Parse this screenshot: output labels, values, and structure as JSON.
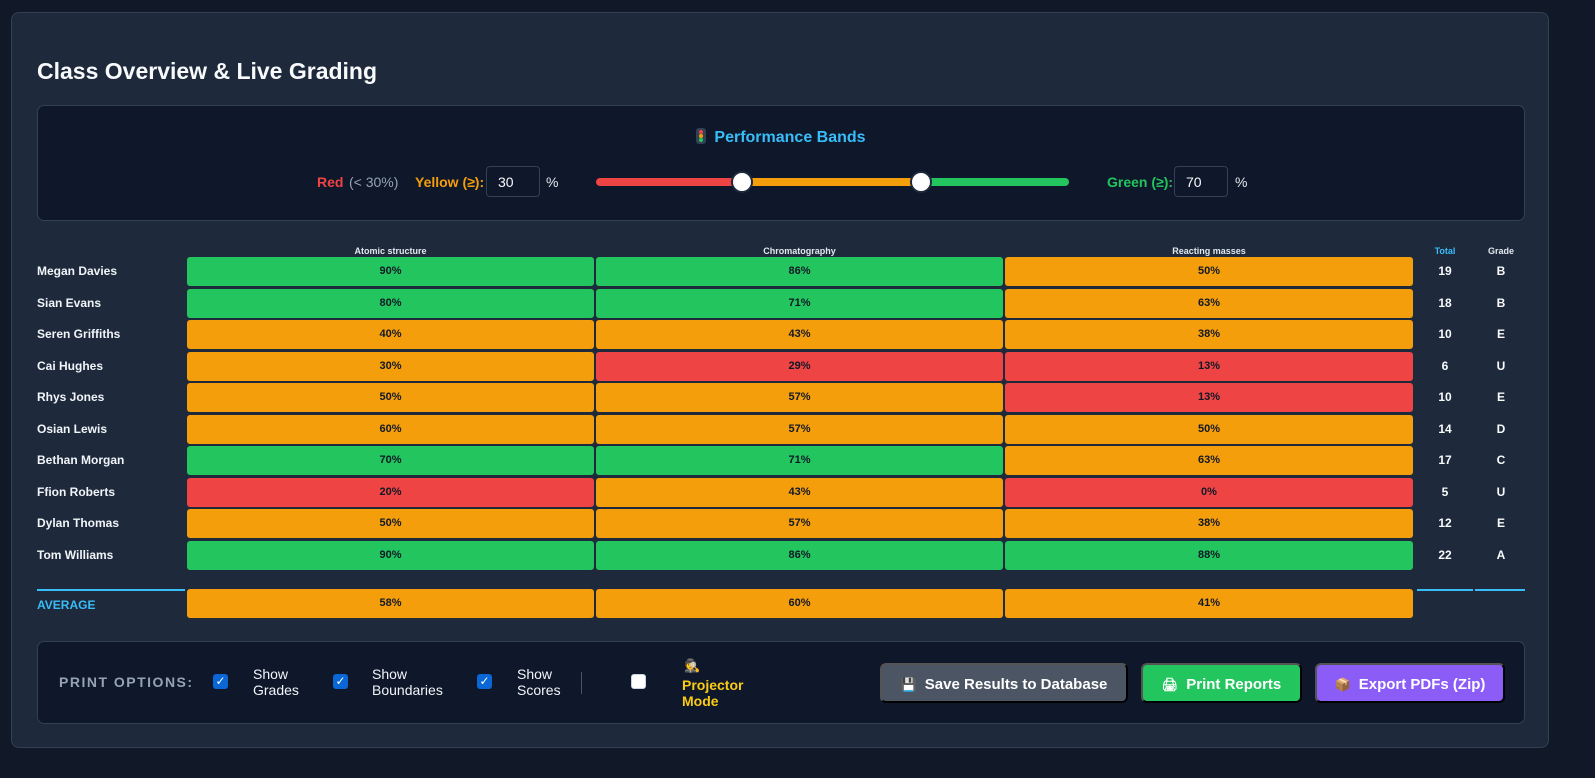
{
  "page": {
    "title": "Class Overview & Live Grading"
  },
  "bands": {
    "title": "Performance Bands",
    "red_label": "Red",
    "red_sub": "(< 30%)",
    "yellow_label": "Yellow (≥):",
    "yellow_value": "30",
    "green_label": "Green (≥):",
    "green_value": "70",
    "percent_sign": "%",
    "colors": {
      "red": "#ef4444",
      "yellow": "#f59e0b",
      "green": "#22c55e"
    },
    "slider": {
      "min": 0,
      "max": 100,
      "low": 30,
      "high": 70
    }
  },
  "table": {
    "headers": [
      "Atomic structure",
      "Chromatography",
      "Reacting masses"
    ],
    "total_header": "Total",
    "grade_header": "Grade",
    "rows": [
      {
        "name": "Megan Davies",
        "scores": [
          "90%",
          "86%",
          "50%"
        ],
        "bands": [
          "green",
          "green",
          "yellow"
        ],
        "total": "19",
        "grade": "B"
      },
      {
        "name": "Sian Evans",
        "scores": [
          "80%",
          "71%",
          "63%"
        ],
        "bands": [
          "green",
          "green",
          "yellow"
        ],
        "total": "18",
        "grade": "B"
      },
      {
        "name": "Seren Griffiths",
        "scores": [
          "40%",
          "43%",
          "38%"
        ],
        "bands": [
          "yellow",
          "yellow",
          "yellow"
        ],
        "total": "10",
        "grade": "E"
      },
      {
        "name": "Cai Hughes",
        "scores": [
          "30%",
          "29%",
          "13%"
        ],
        "bands": [
          "yellow",
          "red",
          "red"
        ],
        "total": "6",
        "grade": "U"
      },
      {
        "name": "Rhys Jones",
        "scores": [
          "50%",
          "57%",
          "13%"
        ],
        "bands": [
          "yellow",
          "yellow",
          "red"
        ],
        "total": "10",
        "grade": "E"
      },
      {
        "name": "Osian Lewis",
        "scores": [
          "60%",
          "57%",
          "50%"
        ],
        "bands": [
          "yellow",
          "yellow",
          "yellow"
        ],
        "total": "14",
        "grade": "D"
      },
      {
        "name": "Bethan Morgan",
        "scores": [
          "70%",
          "71%",
          "63%"
        ],
        "bands": [
          "green",
          "green",
          "yellow"
        ],
        "total": "17",
        "grade": "C"
      },
      {
        "name": "Ffion Roberts",
        "scores": [
          "20%",
          "43%",
          "0%"
        ],
        "bands": [
          "red",
          "yellow",
          "red"
        ],
        "total": "5",
        "grade": "U"
      },
      {
        "name": "Dylan Thomas",
        "scores": [
          "50%",
          "57%",
          "38%"
        ],
        "bands": [
          "yellow",
          "yellow",
          "yellow"
        ],
        "total": "12",
        "grade": "E"
      },
      {
        "name": "Tom Williams",
        "scores": [
          "90%",
          "86%",
          "88%"
        ],
        "bands": [
          "green",
          "green",
          "green"
        ],
        "total": "22",
        "grade": "A"
      }
    ],
    "average": {
      "label": "AVERAGE",
      "scores": [
        "58%",
        "60%",
        "41%"
      ],
      "bands": [
        "yellow",
        "yellow",
        "yellow"
      ]
    }
  },
  "print_options": {
    "label": "PRINT OPTIONS:",
    "show_grades": {
      "label": "Show Grades",
      "checked": true
    },
    "show_boundaries": {
      "label": "Show Boundaries",
      "checked": true
    },
    "show_scores": {
      "label": "Show Scores",
      "checked": true
    },
    "projector_mode": {
      "label": "Projector Mode",
      "checked": false,
      "icon": "detective-icon"
    }
  },
  "actions": {
    "save": {
      "label": "Save Results to Database",
      "icon": "floppy-disk-icon",
      "color": "#4b5563"
    },
    "print": {
      "label": "Print Reports",
      "icon": "printer-icon",
      "color": "#22c55e"
    },
    "export": {
      "label": "Export PDFs (Zip)",
      "icon": "package-icon",
      "color": "#8b5cf6"
    }
  }
}
